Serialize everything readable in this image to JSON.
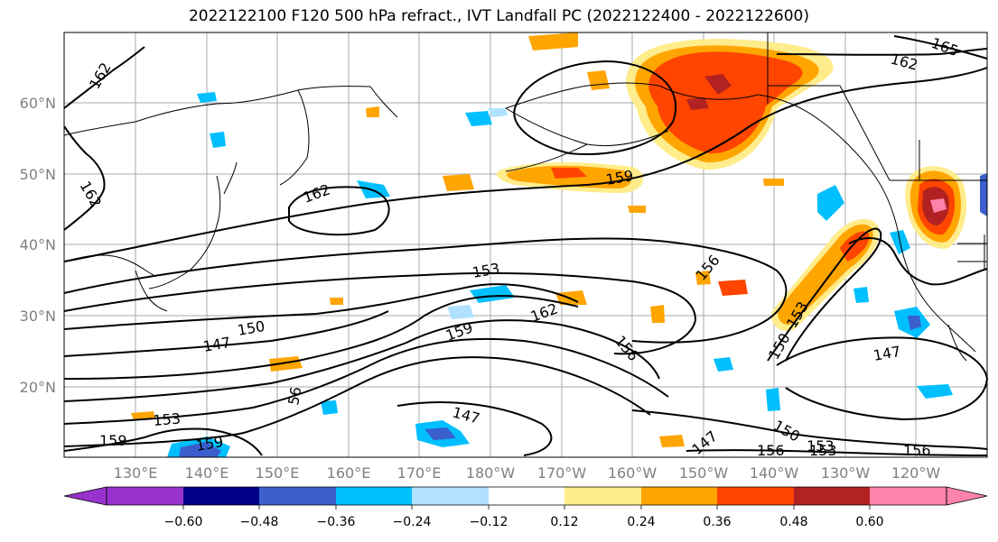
{
  "title": "2022122100 F120 500 hPa refract., IVT Landfall PC (2022122400 - 2022122600)",
  "lat_labels": [
    "60°N",
    "50°N",
    "40°N",
    "30°N",
    "20°N"
  ],
  "lon_labels": [
    "130°E",
    "140°E",
    "150°E",
    "160°E",
    "170°E",
    "180°W",
    "170°W",
    "160°W",
    "150°W",
    "140°W",
    "130°W",
    "120°W"
  ],
  "contour_labels": [
    "162",
    "165",
    "162",
    "162",
    "162",
    "159",
    "156",
    "153",
    "150",
    "147",
    "153",
    "162",
    "159",
    "156",
    "150",
    "153",
    "147",
    "147",
    "150",
    "156",
    "153",
    "156",
    "147",
    "56",
    "159",
    "159",
    "153"
  ],
  "colorbar": {
    "ticks": [
      "−0.60",
      "−0.48",
      "−0.36",
      "−0.24",
      "−0.12",
      "0.12",
      "0.24",
      "0.36",
      "0.48",
      "0.60"
    ],
    "colors": [
      "#9932cc",
      "#00008b",
      "#3a5fcd",
      "#00bfff",
      "#b0e2ff",
      "#ffffff",
      "#ffec8b",
      "#ffa500",
      "#ff4500",
      "#b22222",
      "#ff82ab",
      "#ff82ab"
    ]
  },
  "fill_colors": {
    "orange_light": "#ffec8b",
    "orange": "#ffa500",
    "red_orange": "#ff4500",
    "dark_red": "#b22222",
    "pink": "#ff82ab",
    "blue_light": "#b0e2ff",
    "blue": "#00bfff",
    "blue_mid": "#3a5fcd",
    "navy": "#00008b",
    "purple": "#9932cc"
  }
}
